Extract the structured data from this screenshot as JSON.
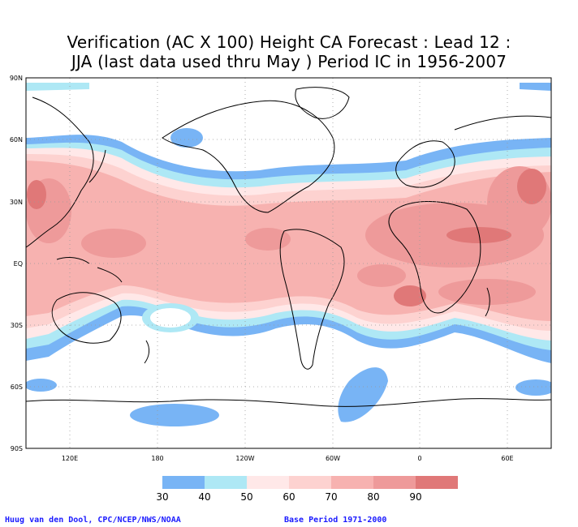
{
  "title_line1": "Verification (AC X 100) Height CA Forecast : Lead 12 :",
  "title_line2": "JJA (last data used thru May ) Period IC in 1956-2007",
  "credit": "Huug van den Dool, CPC/NCEP/NWS/NOAA",
  "base_period": "Base Period 1971-2000",
  "map": {
    "projection": "cylindrical equidistant",
    "lon_range": [
      90,
      450
    ],
    "lat_range": [
      -90,
      90
    ],
    "lat_labels": [
      "90N",
      "60N",
      "30N",
      "EQ",
      "30S",
      "60S",
      "90S"
    ],
    "lon_labels": [
      "120E",
      "180",
      "120W",
      "60W",
      "0",
      "60E"
    ],
    "grid": "dotted"
  },
  "legend": {
    "thresholds": [
      "30",
      "40",
      "50",
      "60",
      "70",
      "80",
      "90"
    ],
    "colors": [
      "#78b4f5",
      "#aee8f5",
      "#ffe8e8",
      "#fdd2d0",
      "#f7b2b0",
      "#ee9a9a",
      "#e07878",
      "#d45f5f"
    ]
  },
  "colors": {
    "c30": "#78b4f5",
    "c40": "#aee8f5",
    "c50": "#ffe8e8",
    "c60": "#fdd2d0",
    "c70": "#f7b2b0",
    "c80": "#ee9a9a",
    "c90": "#e07878"
  }
}
